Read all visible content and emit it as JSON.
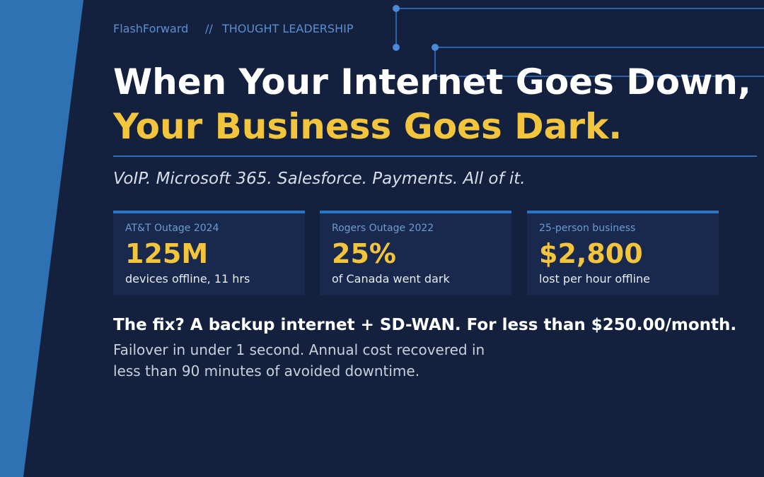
{
  "header": {
    "brand": "FlashForward",
    "separator": "//",
    "section": "THOUGHT LEADERSHIP"
  },
  "title": {
    "line1": "When Your Internet Goes Down,",
    "line2": "Your Business Goes Dark."
  },
  "subtitle": "VoIP. Microsoft 365. Salesforce. Payments. All of it.",
  "stats": [
    {
      "label": "AT&T Outage 2024",
      "value": "125M",
      "description": "devices offline, 11 hrs"
    },
    {
      "label": "Rogers Outage 2022",
      "value": "25%",
      "description": "of Canada went dark"
    },
    {
      "label": "25-person business",
      "value": "$2,800",
      "description": "lost per hour offline"
    }
  ],
  "callout": {
    "headline": "The fix? A backup internet + SD-WAN. For less than $250.00/month.",
    "body": [
      "Failover in under 1 second. Annual cost recovered in",
      "less than 90 minutes of avoided downtime."
    ]
  }
}
